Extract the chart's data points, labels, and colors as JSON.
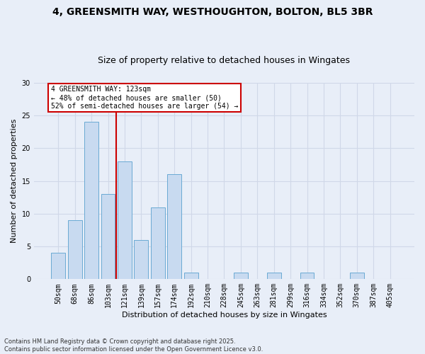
{
  "title_line1": "4, GREENSMITH WAY, WESTHOUGHTON, BOLTON, BL5 3BR",
  "title_line2": "Size of property relative to detached houses in Wingates",
  "xlabel": "Distribution of detached houses by size in Wingates",
  "ylabel": "Number of detached properties",
  "categories": [
    "50sqm",
    "68sqm",
    "86sqm",
    "103sqm",
    "121sqm",
    "139sqm",
    "157sqm",
    "174sqm",
    "192sqm",
    "210sqm",
    "228sqm",
    "245sqm",
    "263sqm",
    "281sqm",
    "299sqm",
    "316sqm",
    "334sqm",
    "352sqm",
    "370sqm",
    "387sqm",
    "405sqm"
  ],
  "values": [
    4,
    9,
    24,
    13,
    18,
    6,
    11,
    16,
    1,
    0,
    0,
    1,
    0,
    1,
    0,
    1,
    0,
    0,
    1,
    0,
    0
  ],
  "bar_color": "#c8daf0",
  "bar_edge_color": "#6aaad4",
  "vline_pos": 3.5,
  "vline_color": "#cc0000",
  "annotation_text": "4 GREENSMITH WAY: 123sqm\n← 48% of detached houses are smaller (50)\n52% of semi-detached houses are larger (54) →",
  "annotation_box_color": "white",
  "annotation_box_edge": "#cc0000",
  "ylim": [
    0,
    30
  ],
  "yticks": [
    0,
    5,
    10,
    15,
    20,
    25,
    30
  ],
  "bg_color": "#e8eef8",
  "grid_color": "#d0d8e8",
  "title_fontsize": 10,
  "subtitle_fontsize": 9,
  "ylabel_fontsize": 8,
  "xlabel_fontsize": 8,
  "tick_fontsize": 7,
  "ann_fontsize": 7,
  "footer_line1": "Contains HM Land Registry data © Crown copyright and database right 2025.",
  "footer_line2": "Contains public sector information licensed under the Open Government Licence v3.0."
}
